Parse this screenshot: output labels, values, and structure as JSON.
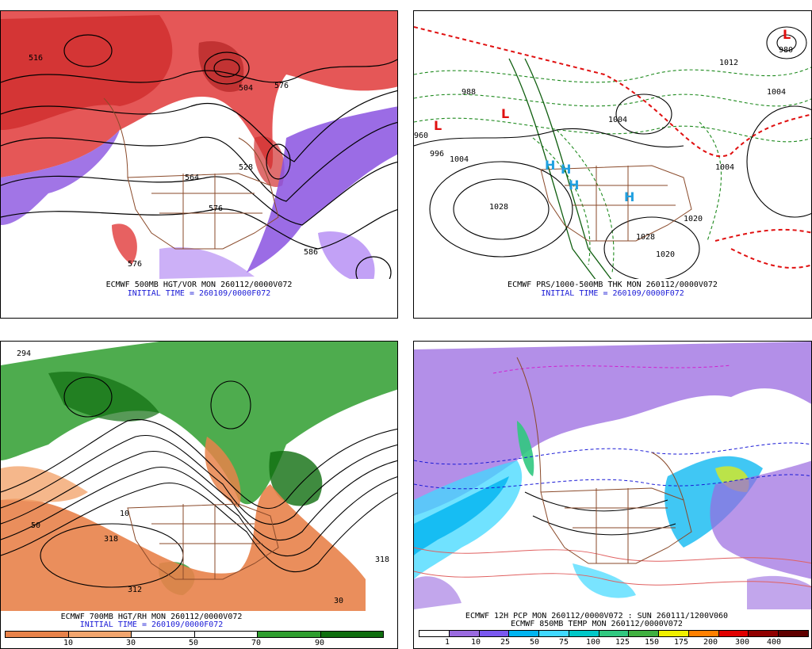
{
  "panels": {
    "tl": {
      "line1": "ECMWF 500MB HGT/VOR MON 260112/0000V072",
      "line2": "INITIAL TIME = 260109/0000F072",
      "contour_labels": [
        "516",
        "504",
        "576",
        "564",
        "576",
        "586",
        "528",
        "576"
      ]
    },
    "tr": {
      "line1": "ECMWF PRS/1000-500MB THK MON 260112/0000V072",
      "line2": "INITIAL TIME = 260109/0000F072",
      "contour_labels": [
        "988",
        "996",
        "1004",
        "1028",
        "1004",
        "1020",
        "1028",
        "1020",
        "1004",
        "980",
        "1012",
        "1004",
        "960"
      ]
    },
    "bl": {
      "line1": "ECMWF 700MB HGT/RH MON 260112/0000V072",
      "line2": "INITIAL TIME = 260109/0000F072",
      "contour_labels": [
        "294",
        "318",
        "312",
        "318",
        "10",
        "50",
        "30"
      ]
    },
    "br": {
      "line1": "ECMWF 12H PCP MON 260112/0000V072 : SUN 260111/1200V060",
      "line2": "ECMWF 850MB TEMP MON 260112/0000V072"
    }
  },
  "legend_rh": {
    "ticks": [
      "10",
      "30",
      "50",
      "70",
      "90"
    ],
    "colors": [
      "#e8824a",
      "#f2a56e",
      "#ffffff",
      "#ffffff",
      "#2f9e2f",
      "#0f6e0f"
    ]
  },
  "legend_pcp": {
    "ticks": [
      "1",
      "10",
      "25",
      "50",
      "75",
      "100",
      "125",
      "150",
      "175",
      "200",
      "300",
      "400"
    ],
    "colors": [
      "#ffffff",
      "#9a6ae0",
      "#7a58f0",
      "#00b4f0",
      "#40d8ff",
      "#00c8c8",
      "#30c880",
      "#40b040",
      "#f0f000",
      "#ff8000",
      "#e00000",
      "#900000",
      "#600000"
    ]
  }
}
